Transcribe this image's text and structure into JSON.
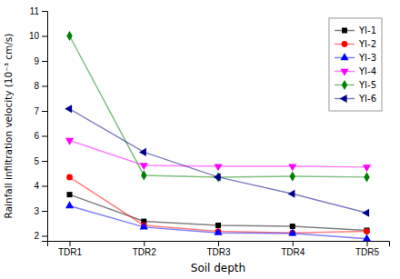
{
  "chart_data": {
    "type": "line",
    "categories": [
      "TDR1",
      "TDR2",
      "TDR3",
      "TDR4",
      "TDR5"
    ],
    "series": [
      {
        "name": "YI-1",
        "color": "#000000",
        "marker": "square",
        "values": [
          3.65,
          2.58,
          2.42,
          2.38,
          2.22
        ]
      },
      {
        "name": "YI-2",
        "color": "#FF0000",
        "marker": "circle",
        "values": [
          4.35,
          2.42,
          2.18,
          2.12,
          2.18
        ]
      },
      {
        "name": "YI-3",
        "color": "#0000FF",
        "marker": "triangle-up",
        "values": [
          3.2,
          2.35,
          2.12,
          2.1,
          1.88
        ]
      },
      {
        "name": "YI-4",
        "color": "#FF00FF",
        "marker": "triangle-down",
        "values": [
          5.82,
          4.82,
          4.78,
          4.78,
          4.75
        ]
      },
      {
        "name": "YI-5",
        "color": "#008000",
        "marker": "diamond",
        "values": [
          10.0,
          4.42,
          4.35,
          4.38,
          4.35
        ]
      },
      {
        "name": "YI-6",
        "color": "#00008B",
        "marker": "triangle-left",
        "values": [
          7.08,
          5.35,
          4.35,
          3.68,
          2.92
        ]
      }
    ],
    "xlabel": "Soil depth",
    "ylabel": "Rainfall infiltration velocity (10⁻³ cm/s)",
    "ylim": [
      1.8,
      11
    ],
    "yticks": [
      2,
      3,
      4,
      5,
      6,
      7,
      8,
      9,
      10,
      11
    ],
    "grid": false,
    "legend": "upper right"
  }
}
